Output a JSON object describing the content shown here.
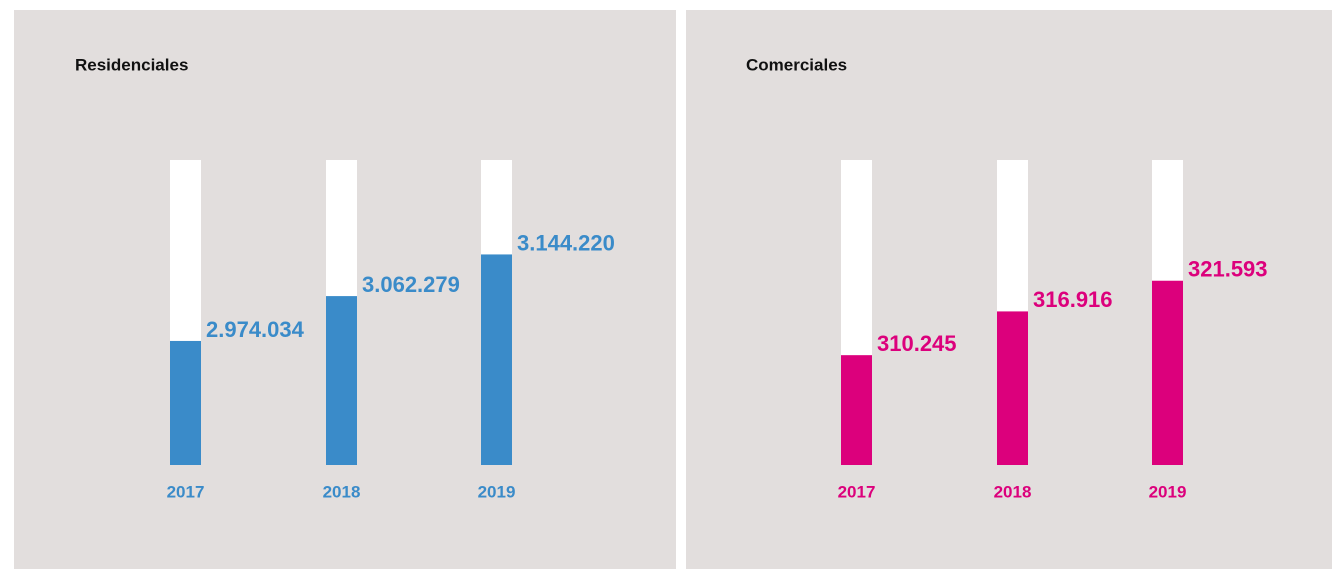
{
  "chart_data": [
    {
      "type": "bar",
      "title": "Residenciales",
      "categories": [
        "2017",
        "2018",
        "2019"
      ],
      "values": [
        2974034,
        3062279,
        3144220
      ],
      "value_labels": [
        "2.974.034",
        "3.062.279",
        "3.144.220"
      ],
      "color": "#3a8bc9",
      "ylim": [
        2730000,
        3330000
      ]
    },
    {
      "type": "bar",
      "title": "Comerciales",
      "categories": [
        "2017",
        "2018",
        "2019"
      ],
      "values": [
        310245,
        316916,
        321593
      ],
      "value_labels": [
        "310.245",
        "316.916",
        "321.593"
      ],
      "color": "#dc007c",
      "ylim": [
        293500,
        340000
      ]
    }
  ]
}
